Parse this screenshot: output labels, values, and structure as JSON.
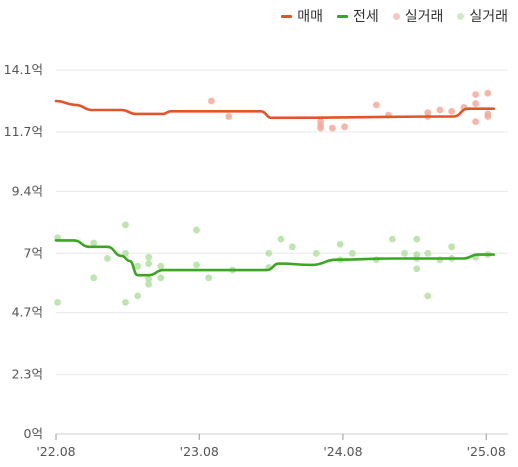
{
  "legend": {
    "sale_label": "매매",
    "jeonse_label": "전세",
    "sale_actual_label": "실거래",
    "jeonse_actual_label": "실거래"
  },
  "colors": {
    "sale": "#e2542a",
    "jeonse": "#3aa723",
    "sale_dot": "#f4aa9a",
    "jeonse_dot": "#b3e0a2",
    "grid": "#e8e8e8",
    "axis": "#999999"
  },
  "chart_data": {
    "type": "line",
    "y_unit": "억",
    "ylim": [
      0,
      14.1
    ],
    "xlim": [
      "2022-08-01",
      "2025-08-31"
    ],
    "yticks": [
      0,
      2.3,
      4.7,
      7,
      9.4,
      11.7,
      14.1
    ],
    "ytick_labels": [
      "0억",
      "2.3억",
      "4.7억",
      "7억",
      "9.4억",
      "11.7억",
      "14.1억"
    ],
    "xticks": [
      "2022-08-01",
      "2023-08-01",
      "2024-08-01",
      "2025-08-01"
    ],
    "xtick_labels": [
      "'22.08",
      "'23.08",
      "'24.08",
      "'25.08"
    ],
    "grid": true,
    "legend_position": "top-right",
    "series": [
      {
        "name": "매매",
        "style": "line",
        "points": [
          [
            "2022-08-01",
            12.9
          ],
          [
            "2022-09-20",
            12.75
          ],
          [
            "2022-11-01",
            12.55
          ],
          [
            "2023-01-15",
            12.55
          ],
          [
            "2023-02-20",
            12.4
          ],
          [
            "2023-05-01",
            12.4
          ],
          [
            "2023-05-20",
            12.5
          ],
          [
            "2024-01-05",
            12.5
          ],
          [
            "2024-02-01",
            12.25
          ],
          [
            "2025-05-10",
            12.3
          ],
          [
            "2025-06-15",
            12.6
          ],
          [
            "2025-08-20",
            12.6
          ]
        ]
      },
      {
        "name": "전세",
        "style": "line",
        "points": [
          [
            "2022-08-01",
            7.5
          ],
          [
            "2022-09-15",
            7.5
          ],
          [
            "2022-10-25",
            7.25
          ],
          [
            "2022-12-10",
            7.25
          ],
          [
            "2023-01-15",
            6.9
          ],
          [
            "2023-02-05",
            6.7
          ],
          [
            "2023-02-25",
            6.15
          ],
          [
            "2023-03-25",
            6.15
          ],
          [
            "2023-05-01",
            6.35
          ],
          [
            "2023-06-15",
            6.35
          ],
          [
            "2024-01-20",
            6.35
          ],
          [
            "2024-02-20",
            6.6
          ],
          [
            "2024-05-15",
            6.55
          ],
          [
            "2024-07-15",
            6.75
          ],
          [
            "2024-12-10",
            6.8
          ],
          [
            "2025-06-05",
            6.8
          ],
          [
            "2025-07-10",
            6.95
          ],
          [
            "2025-08-20",
            6.95
          ]
        ]
      },
      {
        "name": "실거래",
        "style": "dots",
        "points": [
          [
            "2023-09-01",
            12.9
          ],
          [
            "2023-10-15",
            12.3
          ],
          [
            "2024-06-05",
            12.1
          ],
          [
            "2024-06-05",
            11.95
          ],
          [
            "2024-06-05",
            11.85
          ],
          [
            "2024-07-05",
            11.85
          ],
          [
            "2024-08-05",
            11.9
          ],
          [
            "2024-10-25",
            12.75
          ],
          [
            "2024-11-25",
            12.35
          ],
          [
            "2025-03-05",
            12.45
          ],
          [
            "2025-03-05",
            12.3
          ],
          [
            "2025-04-05",
            12.55
          ],
          [
            "2025-05-05",
            12.5
          ],
          [
            "2025-06-05",
            12.65
          ],
          [
            "2025-07-05",
            13.15
          ],
          [
            "2025-07-05",
            12.8
          ],
          [
            "2025-07-05",
            12.1
          ],
          [
            "2025-08-05",
            13.2
          ],
          [
            "2025-08-05",
            12.4
          ],
          [
            "2025-08-05",
            12.3
          ]
        ]
      },
      {
        "name": "실거래",
        "style": "dots",
        "points": [
          [
            "2022-08-05",
            7.6
          ],
          [
            "2022-08-05",
            5.1
          ],
          [
            "2022-11-05",
            7.4
          ],
          [
            "2022-11-05",
            6.05
          ],
          [
            "2022-12-10",
            6.8
          ],
          [
            "2023-01-25",
            8.1
          ],
          [
            "2023-01-25",
            7.0
          ],
          [
            "2023-01-25",
            5.1
          ],
          [
            "2023-02-25",
            5.35
          ],
          [
            "2023-02-25",
            6.5
          ],
          [
            "2023-03-25",
            6.6
          ],
          [
            "2023-03-25",
            6.85
          ],
          [
            "2023-03-25",
            6.0
          ],
          [
            "2023-03-25",
            5.8
          ],
          [
            "2023-04-25",
            6.5
          ],
          [
            "2023-04-25",
            6.05
          ],
          [
            "2023-07-25",
            7.9
          ],
          [
            "2023-07-25",
            6.55
          ],
          [
            "2023-08-25",
            6.05
          ],
          [
            "2023-10-25",
            6.35
          ],
          [
            "2024-01-25",
            7.0
          ],
          [
            "2024-01-25",
            6.45
          ],
          [
            "2024-02-25",
            7.55
          ],
          [
            "2024-03-25",
            7.25
          ],
          [
            "2024-05-25",
            7.0
          ],
          [
            "2024-07-25",
            7.35
          ],
          [
            "2024-07-25",
            6.75
          ],
          [
            "2024-08-25",
            7.0
          ],
          [
            "2024-10-25",
            6.75
          ],
          [
            "2024-12-05",
            7.55
          ],
          [
            "2025-01-05",
            7.0
          ],
          [
            "2025-02-05",
            7.55
          ],
          [
            "2025-02-05",
            6.95
          ],
          [
            "2025-02-05",
            6.8
          ],
          [
            "2025-02-05",
            6.4
          ],
          [
            "2025-03-05",
            7.0
          ],
          [
            "2025-03-05",
            5.35
          ],
          [
            "2025-04-05",
            6.75
          ],
          [
            "2025-05-05",
            7.25
          ],
          [
            "2025-05-05",
            6.8
          ],
          [
            "2025-07-05",
            6.85
          ],
          [
            "2025-08-05",
            6.95
          ]
        ]
      }
    ]
  }
}
